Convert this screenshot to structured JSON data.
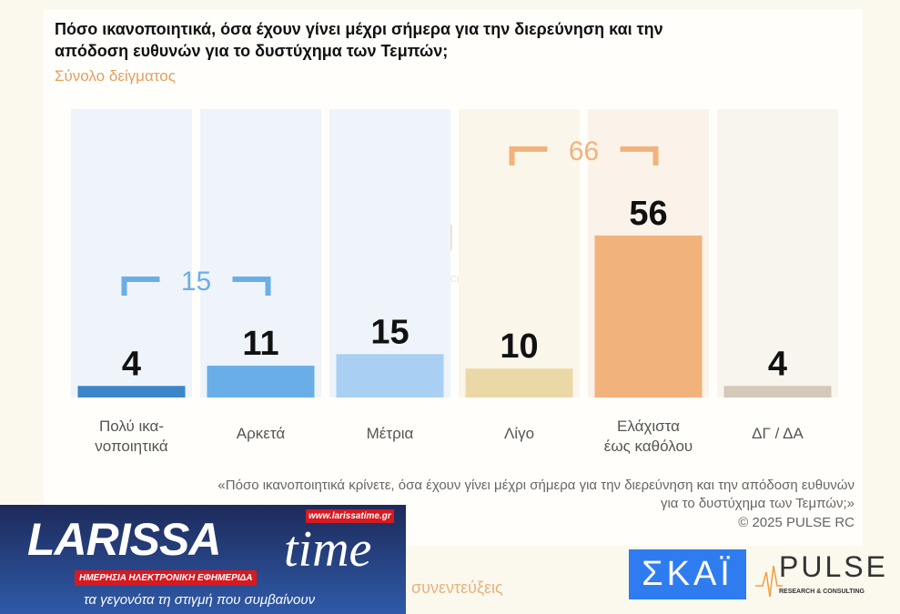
{
  "chart_data": {
    "type": "bar",
    "title": "Πόσο ικανοποιητικά, όσα έχουν γίνει μέχρι σήμερα για την διερεύνηση και την απόδοση ευθυνών για το δυστύχημα των Τεμπών;",
    "subtitle": "Σύνολο δείγματος",
    "categories": [
      "Πολύ ικα-\nνοποιητικά",
      "Αρκετά",
      "Μέτρια",
      "Λίγο",
      "Ελάχιστα\nέως καθόλου",
      "ΔΓ / ΔΑ"
    ],
    "values": [
      4,
      11,
      15,
      10,
      56,
      4
    ],
    "colors": [
      "#3a86c8",
      "#6aaee8",
      "#a9d0f2",
      "#ead9a6",
      "#f2b27c",
      "#d4c8b8"
    ],
    "column_bg": [
      "#eef4fa",
      "#eef4fa",
      "#eef4fa",
      "#fbf6ea",
      "#fbf3ea",
      "#f8f4ee"
    ],
    "ylim": [
      0,
      60
    ],
    "groups": [
      {
        "label": "15",
        "from": 0,
        "to": 1,
        "color": "#6aaee8"
      },
      {
        "label": "66",
        "from": 3,
        "to": 4,
        "color": "#f2b27c"
      }
    ]
  },
  "watermark": {
    "name": "PULSE",
    "sub": "RESEARCH & CONSULTING"
  },
  "note": "«Πόσο ικανοποιητικά κρίνετε, όσα έχουν γίνει μέχρι σήμερα για την διερεύνηση και την απόδοση ευθυνών για το δυστύχημα των Τεμπών;»",
  "copyright": "©  2025  PULSE RC",
  "larissa": {
    "logo": "LARISSA",
    "time": "time",
    "url": "www.larissatime.gr",
    "tag": "ΗΜΕΡΗΣΙΑ ΗΛΕΚΤΡΟΝΙΚΗ ΕΦΗΜΕΡΙΔΑ",
    "slogan": "τα γεγονότα τη στιγμή που συμβαίνουν"
  },
  "interviews": "συνεντεύξεις",
  "skai": "ΣΚΑΪ",
  "pulse": {
    "name": "PULSE",
    "sub": "RESEARCH & CONSULTING"
  }
}
